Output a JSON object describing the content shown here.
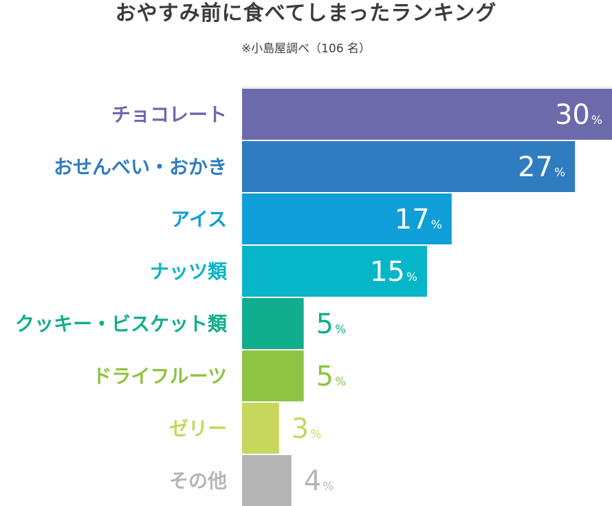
{
  "chart_data": {
    "type": "bar",
    "orientation": "horizontal",
    "title": "おやすみ前に食べてしまったランキング",
    "subtitle": "※小島屋調べ（106 名）",
    "categories": [
      "チョコレート",
      "おせんべい・おかき",
      "アイス",
      "ナッツ類",
      "クッキー・ビスケット類",
      "ドライフルーツ",
      "ゼリー",
      "その他"
    ],
    "values": [
      30,
      27,
      17,
      15,
      5,
      5,
      3,
      4
    ],
    "unit": "%",
    "xlim": [
      0,
      30
    ],
    "grid": false,
    "legend": "none",
    "bar_colors": [
      "#6d6aab",
      "#2f7cc0",
      "#0f9fd8",
      "#06b5c8",
      "#10ae8c",
      "#8fc343",
      "#c6d75c",
      "#b5b5b5"
    ],
    "label_colors": [
      "#6d6aab",
      "#2f7cc0",
      "#0f9fd8",
      "#06b5c8",
      "#10ae8c",
      "#8fc343",
      "#c6d75c",
      "#b5b5b5"
    ]
  }
}
